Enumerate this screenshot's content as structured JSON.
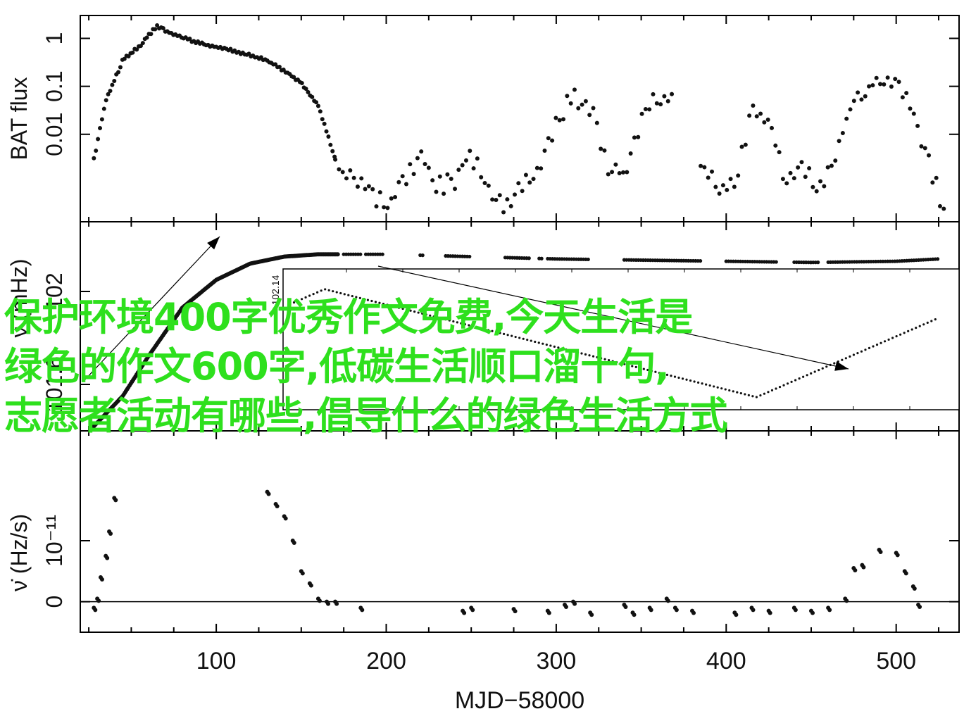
{
  "chart_data": {
    "type": "scatter",
    "xlabel": "MJD−58000",
    "xlim": [
      20,
      537
    ],
    "x_ticks": [
      "100",
      "200",
      "300",
      "400",
      "500"
    ],
    "panels": [
      {
        "name": "bat",
        "ylabel": "BAT flux",
        "yscale": "log",
        "ylim": [
          0.00015,
          3.0
        ],
        "y_ticks": [
          "0.01",
          "0.1",
          "1"
        ],
        "curve": [
          [
            28,
            0.003
          ],
          [
            35,
            0.05
          ],
          [
            45,
            0.35
          ],
          [
            55,
            0.7
          ],
          [
            65,
            1.8
          ],
          [
            75,
            1.2
          ],
          [
            90,
            0.8
          ],
          [
            110,
            0.55
          ],
          [
            130,
            0.35
          ],
          [
            150,
            0.12
          ],
          [
            160,
            0.04
          ],
          [
            170,
            0.003
          ],
          [
            175,
            0.0015
          ],
          [
            185,
            0.001
          ],
          [
            200,
            0.0003
          ],
          [
            210,
            0.001
          ],
          [
            220,
            0.004
          ],
          [
            230,
            0.0008
          ],
          [
            240,
            0.001
          ],
          [
            248,
            0.004
          ],
          [
            255,
            0.002
          ],
          [
            262,
            0.0005
          ],
          [
            270,
            0.0003
          ],
          [
            280,
            0.001
          ],
          [
            290,
            0.002
          ],
          [
            300,
            0.02
          ],
          [
            310,
            0.06
          ],
          [
            320,
            0.04
          ],
          [
            330,
            0.002
          ],
          [
            340,
            0.0015
          ],
          [
            350,
            0.02
          ],
          [
            360,
            0.06
          ],
          [
            370,
            0.05
          ]
        ],
        "curve2": [
          [
            385,
            0.002
          ],
          [
            395,
            0.0008
          ],
          [
            405,
            0.001
          ],
          [
            415,
            0.03
          ],
          [
            425,
            0.02
          ],
          [
            435,
            0.001
          ],
          [
            445,
            0.002
          ],
          [
            455,
            0.0008
          ],
          [
            465,
            0.005
          ],
          [
            475,
            0.05
          ],
          [
            490,
            0.15
          ],
          [
            500,
            0.12
          ],
          [
            510,
            0.03
          ],
          [
            520,
            0.002
          ],
          [
            530,
            0.00015
          ]
        ]
      },
      {
        "name": "freq",
        "ylabel": "ν (mHz)",
        "ylim": [
          101.4,
          102.3
        ],
        "y_ticks": [
          "101.6",
          "102"
        ],
        "curve": [
          [
            28,
            101.42
          ],
          [
            45,
            101.55
          ],
          [
            60,
            101.72
          ],
          [
            80,
            101.93
          ],
          [
            100,
            102.05
          ],
          [
            120,
            102.12
          ],
          [
            140,
            102.15
          ],
          [
            160,
            102.16
          ],
          [
            200,
            102.16
          ],
          [
            300,
            102.14
          ],
          [
            400,
            102.13
          ],
          [
            450,
            102.125
          ],
          [
            500,
            102.13
          ],
          [
            525,
            102.14
          ]
        ],
        "inset_ylabel": "102.14"
      },
      {
        "name": "nudot",
        "ylabel": "ν̇ (Hz/s)",
        "ylim": [
          -5e-12,
          2.8e-11
        ],
        "y_ticks": [
          "0",
          "10⁻¹¹"
        ],
        "points": [
          [
            28,
            -1e-12
          ],
          [
            30,
            5e-13
          ],
          [
            32,
            4e-12
          ],
          [
            35,
            7.5e-12
          ],
          [
            37,
            1.15e-11
          ],
          [
            40,
            1.7e-11
          ],
          [
            130,
            1.8e-11
          ],
          [
            135,
            1.6e-11
          ],
          [
            140,
            1.4e-11
          ],
          [
            145,
            1e-11
          ],
          [
            150,
            5e-12
          ],
          [
            155,
            3e-12
          ],
          [
            160,
            5e-13
          ],
          [
            165,
            0.0
          ],
          [
            170,
            0.0
          ],
          [
            185,
            -1e-12
          ],
          [
            245,
            -1.5e-12
          ],
          [
            250,
            -1e-12
          ],
          [
            275,
            -1.2e-12
          ],
          [
            295,
            -1.5e-12
          ],
          [
            305,
            -5e-13
          ],
          [
            310,
            0.0
          ],
          [
            320,
            -1.8e-12
          ],
          [
            340,
            -5e-13
          ],
          [
            345,
            -1.8e-12
          ],
          [
            355,
            -1e-12
          ],
          [
            365,
            5e-13
          ],
          [
            370,
            -1e-12
          ],
          [
            380,
            -1.5e-12
          ],
          [
            405,
            -1.8e-12
          ],
          [
            415,
            -1e-12
          ],
          [
            425,
            -1.5e-12
          ],
          [
            440,
            -1e-12
          ],
          [
            450,
            -1.5e-12
          ],
          [
            460,
            -1e-12
          ],
          [
            470,
            5e-13
          ],
          [
            475,
            5.5e-12
          ],
          [
            480,
            6e-12
          ],
          [
            490,
            8.5e-12
          ],
          [
            500,
            8e-12
          ],
          [
            505,
            5e-12
          ],
          [
            510,
            2.5e-12
          ],
          [
            513,
            -5e-13
          ]
        ]
      }
    ]
  },
  "overlay": {
    "line1": "保护环境400字优秀作文免费,今天生活是",
    "line2": "绿色的作文600字,低碳生活顺口溜十句,",
    "line3": "志愿者活动有哪些,倡导什么的绿色生活方式"
  }
}
